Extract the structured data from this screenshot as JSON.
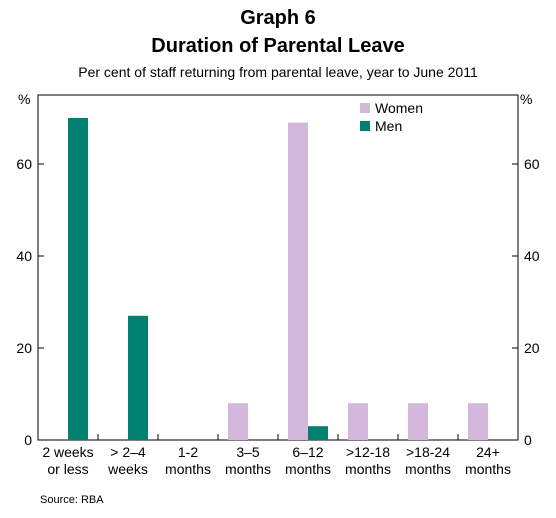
{
  "chart_data": {
    "type": "bar",
    "title": "Graph 6",
    "subtitle": "Duration of Parental Leave",
    "description": "Per cent of staff returning from parental leave, year to June 2011",
    "y_label": "%",
    "y2_label": "%",
    "source": "Source: RBA",
    "categories": [
      "2 weeks\nor less",
      "> 2–4\nweeks",
      "1-2\nmonths",
      "3–5\nmonths",
      "6–12\nmonths",
      ">12-18\nmonths",
      ">18-24\nmonths",
      "24+\nmonths"
    ],
    "series": [
      {
        "name": "Women",
        "color": "#d4b8dc",
        "values": [
          0,
          0,
          0,
          8,
          69,
          8,
          8,
          8
        ]
      },
      {
        "name": "Men",
        "color": "#00806e",
        "values": [
          70,
          27,
          0,
          0,
          3,
          0,
          0,
          0
        ]
      }
    ],
    "ylim": [
      0,
      75
    ],
    "yticks": [
      0,
      20,
      40,
      60
    ],
    "grid": false,
    "legend": "upper right"
  }
}
